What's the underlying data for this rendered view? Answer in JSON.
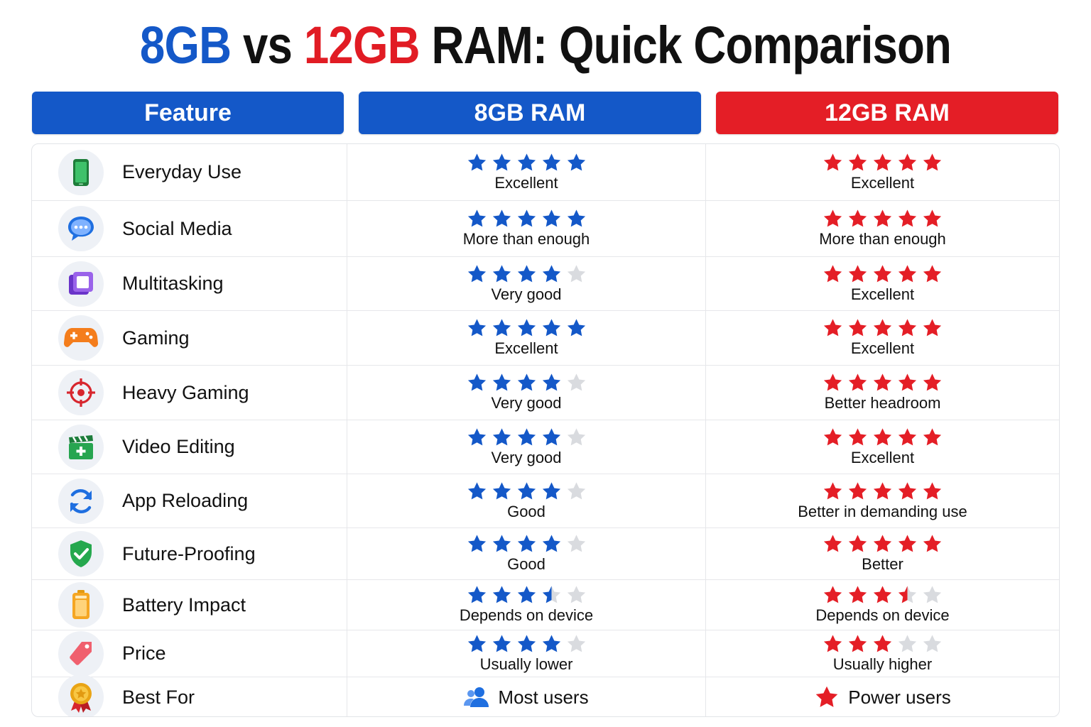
{
  "title": {
    "part1": "8GB",
    "part2": " vs ",
    "part3": "12GB",
    "part4": " RAM: Quick Comparison"
  },
  "headers": {
    "feature": "Feature",
    "ram8": "8GB RAM",
    "ram12": "12GB RAM"
  },
  "colors": {
    "blue": "#1458c8",
    "red": "#e41e26",
    "star_empty": "#d9dbdf"
  },
  "rows": [
    {
      "feature": "Everyday Use",
      "icon": "smartphone-icon",
      "ram8": {
        "rating": 5,
        "text": "Excellent"
      },
      "ram12": {
        "rating": 5,
        "text": "Excellent"
      }
    },
    {
      "feature": "Social Media",
      "icon": "chat-bubble-icon",
      "ram8": {
        "rating": 5,
        "text": "More than enough"
      },
      "ram12": {
        "rating": 5,
        "text": "More than enough"
      }
    },
    {
      "feature": "Multitasking",
      "icon": "multitask-windows-icon",
      "ram8": {
        "rating": 4,
        "text": "Very good"
      },
      "ram12": {
        "rating": 5,
        "text": "Excellent"
      }
    },
    {
      "feature": "Gaming",
      "icon": "gamepad-icon",
      "ram8": {
        "rating": 5,
        "text": "Excellent"
      },
      "ram12": {
        "rating": 5,
        "text": "Excellent"
      }
    },
    {
      "feature": "Heavy Gaming",
      "icon": "crosshair-icon",
      "ram8": {
        "rating": 4,
        "text": "Very good"
      },
      "ram12": {
        "rating": 5,
        "text": "Better headroom"
      }
    },
    {
      "feature": "Video Editing",
      "icon": "clapperboard-icon",
      "ram8": {
        "rating": 4,
        "text": "Very good"
      },
      "ram12": {
        "rating": 5,
        "text": "Excellent"
      }
    },
    {
      "feature": "App Reloading",
      "icon": "refresh-icon",
      "ram8": {
        "rating": 4,
        "text": "Good"
      },
      "ram12": {
        "rating": 5,
        "text": "Better in demanding use"
      }
    },
    {
      "feature": "Future-Proofing",
      "icon": "shield-check-icon",
      "ram8": {
        "rating": 4,
        "text": "Good"
      },
      "ram12": {
        "rating": 5,
        "text": "Better"
      }
    },
    {
      "feature": "Battery Impact",
      "icon": "battery-icon",
      "ram8": {
        "rating": 3.5,
        "text": "Depends on device"
      },
      "ram12": {
        "rating": 3.5,
        "text": "Depends on device"
      }
    },
    {
      "feature": "Price",
      "icon": "price-tag-icon",
      "ram8": {
        "rating": 4,
        "text": "Usually lower"
      },
      "ram12": {
        "rating": 3,
        "text": "Usually higher"
      }
    }
  ],
  "best_for": {
    "feature": "Best For",
    "icon": "medal-icon",
    "ram8": {
      "icon": "users-icon",
      "text": "Most users"
    },
    "ram12": {
      "icon": "star-icon",
      "text": "Power users"
    }
  }
}
